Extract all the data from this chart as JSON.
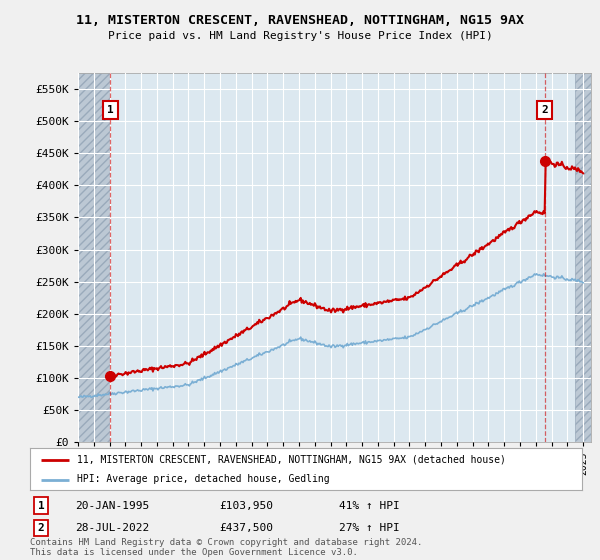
{
  "title": "11, MISTERTON CRESCENT, RAVENSHEAD, NOTTINGHAM, NG15 9AX",
  "subtitle": "Price paid vs. HM Land Registry's House Price Index (HPI)",
  "legend_line1": "11, MISTERTON CRESCENT, RAVENSHEAD, NOTTINGHAM, NG15 9AX (detached house)",
  "legend_line2": "HPI: Average price, detached house, Gedling",
  "transaction1_date": "20-JAN-1995",
  "transaction1_price": "£103,950",
  "transaction1_hpi": "41% ↑ HPI",
  "transaction2_date": "28-JUL-2022",
  "transaction2_price": "£437,500",
  "transaction2_hpi": "27% ↑ HPI",
  "footer": "Contains HM Land Registry data © Crown copyright and database right 2024.\nThis data is licensed under the Open Government Licence v3.0.",
  "red_color": "#cc0000",
  "blue_color": "#7bafd4",
  "background_color": "#dce8f0",
  "grid_color": "#ffffff",
  "fig_bg": "#f0f0f0",
  "ylim": [
    0,
    575000
  ],
  "xlim_start": 1993.0,
  "xlim_end": 2025.5,
  "transaction1_x": 1995.05,
  "transaction1_y": 103950,
  "transaction2_x": 2022.57,
  "transaction2_y": 437500
}
